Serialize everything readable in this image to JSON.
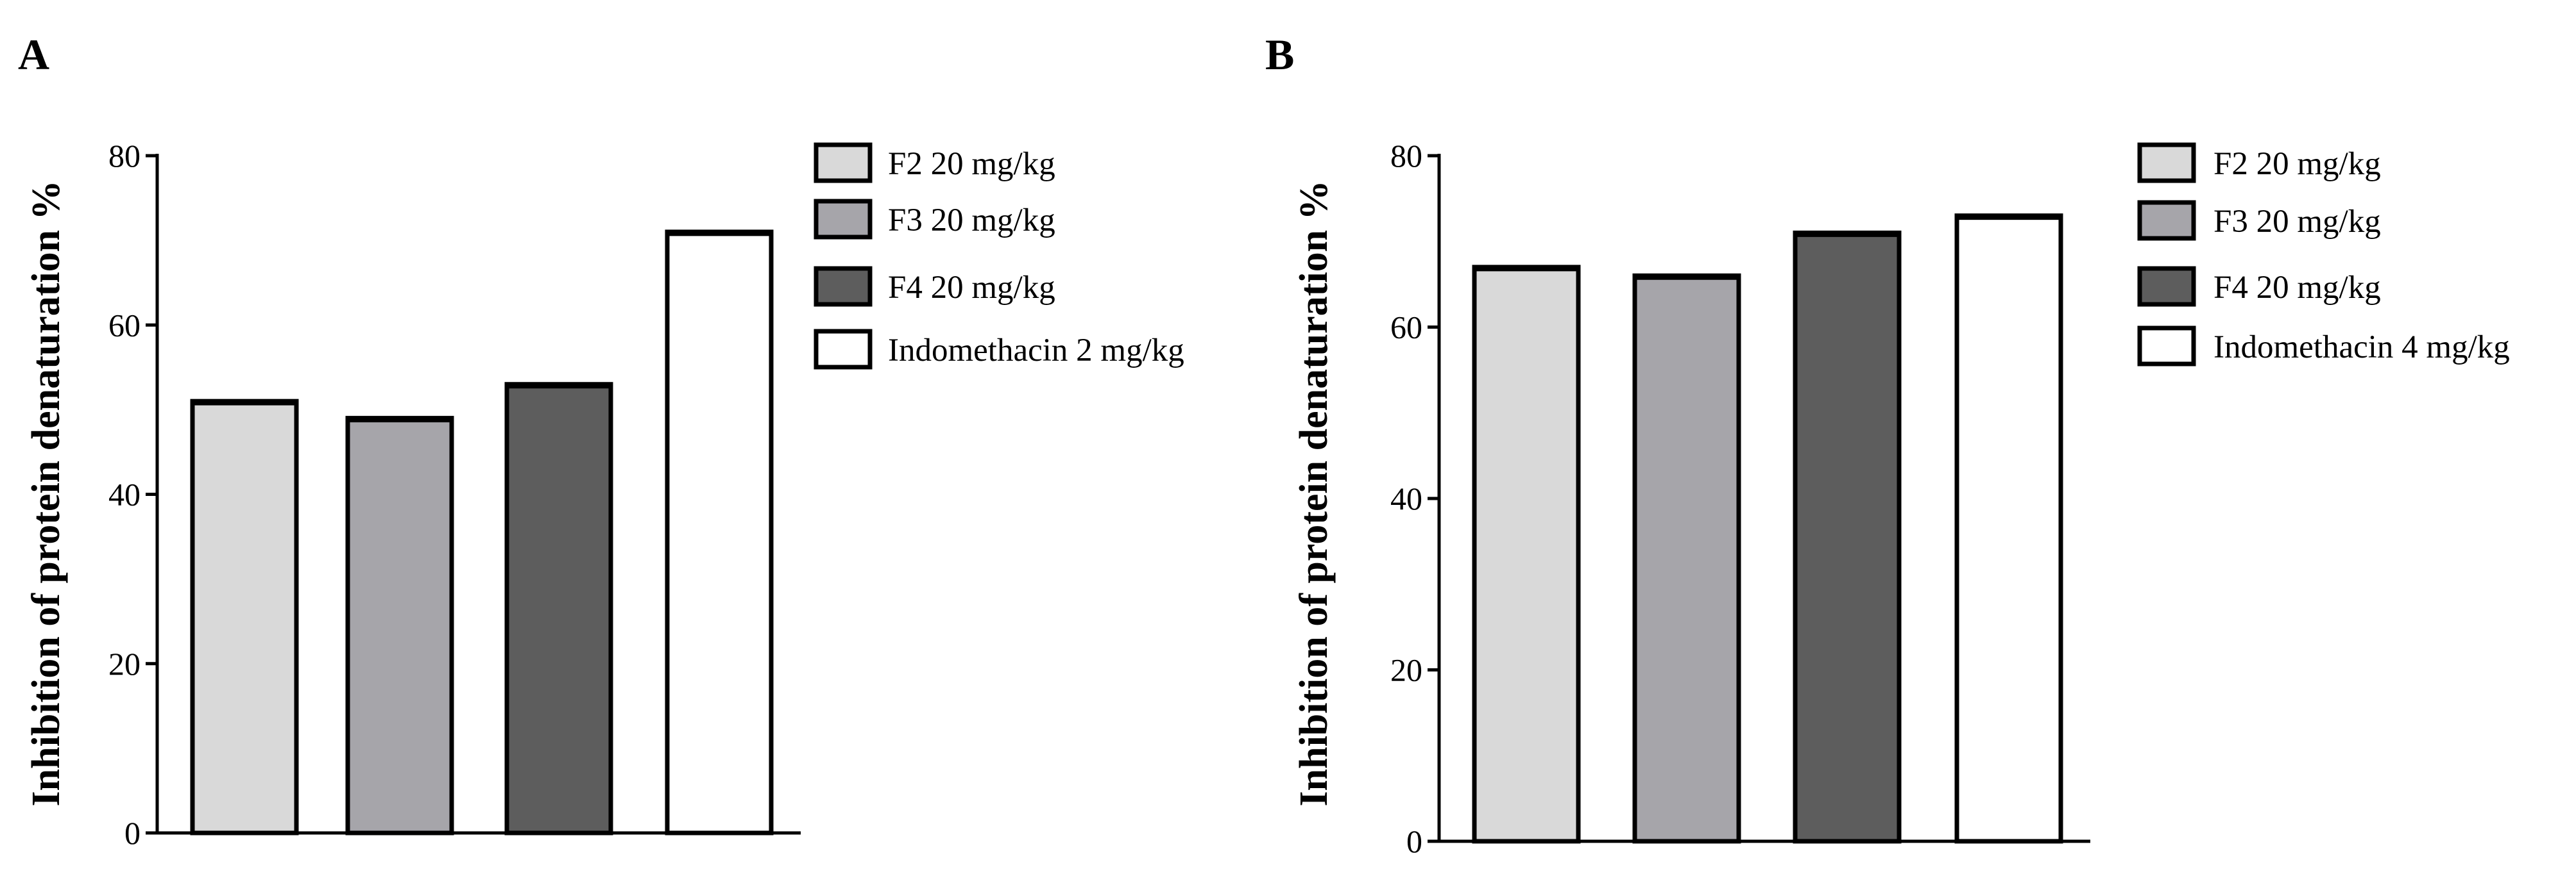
{
  "chart_data": [
    {
      "panel_label": "A",
      "type": "bar",
      "ylabel": "Inhibition of protein denaturation %",
      "ylim": [
        0,
        80
      ],
      "yticks": [
        0,
        20,
        40,
        60,
        80
      ],
      "grid": false,
      "legend_position": "right",
      "series": [
        {
          "name": "F2 20 mg/kg",
          "value": 51,
          "color": "#d9d9d9"
        },
        {
          "name": "F3 20 mg/kg",
          "value": 49,
          "color": "#a6a5aa"
        },
        {
          "name": "F4 20 mg/kg",
          "value": 53,
          "color": "#5d5d5d"
        },
        {
          "name": "Indomethacin 2 mg/kg",
          "value": 71,
          "color": "#ffffff"
        }
      ]
    },
    {
      "panel_label": "B",
      "type": "bar",
      "ylabel": "Inhibition of protein denaturation %",
      "ylim": [
        0,
        80
      ],
      "yticks": [
        0,
        20,
        40,
        60,
        80
      ],
      "grid": false,
      "legend_position": "right",
      "series": [
        {
          "name": "F2 20 mg/kg",
          "value": 67,
          "color": "#d9d9d9"
        },
        {
          "name": "F3 20 mg/kg",
          "value": 66,
          "color": "#a6a5aa"
        },
        {
          "name": "F4 20 mg/kg",
          "value": 71,
          "color": "#5d5d5d"
        },
        {
          "name": "Indomethacin 4 mg/kg",
          "value": 73,
          "color": "#ffffff"
        }
      ]
    }
  ]
}
